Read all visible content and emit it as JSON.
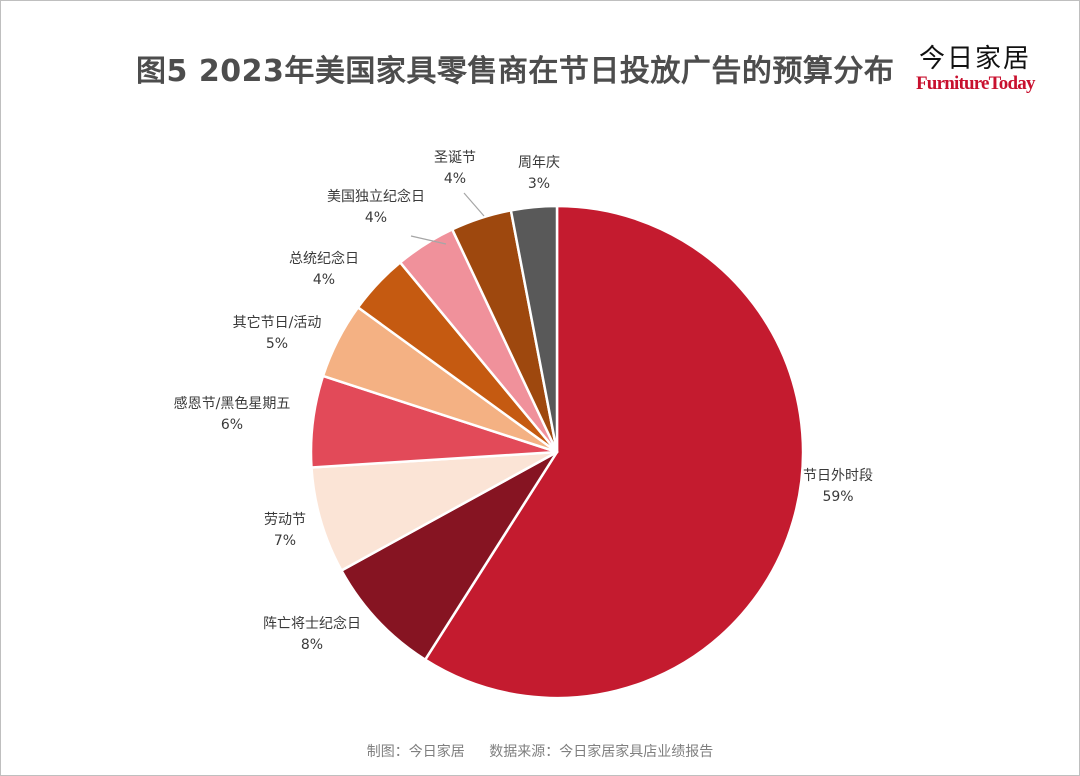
{
  "header": {
    "title": "图5  2023年美国家具零售商在节日投放广告的预算分布",
    "brand_cn": "今日家居",
    "brand_en": "FurnitureToday"
  },
  "footer": {
    "chart_credit": "制图：今日家居",
    "data_source": "数据来源：今日家居家具店业绩报告"
  },
  "chart_data": {
    "type": "pie",
    "title": "图5  2023年美国家具零售商在节日投放广告的预算分布",
    "start_angle": "12 o'clock, clockwise",
    "legend": "none (direct labels)",
    "slices": [
      {
        "label": "节日外时段",
        "value": 59,
        "display": "59%",
        "color": "#c41b2f"
      },
      {
        "label": "阵亡将士纪念日",
        "value": 8,
        "display": "8%",
        "color": "#861422"
      },
      {
        "label": "劳动节",
        "value": 7,
        "display": "7%",
        "color": "#fbe4d6"
      },
      {
        "label": "感恩节/黑色星期五",
        "value": 6,
        "display": "6%",
        "color": "#e24a59"
      },
      {
        "label": "其它节日/活动",
        "value": 5,
        "display": "5%",
        "color": "#f4b183"
      },
      {
        "label": "总统纪念日",
        "value": 4,
        "display": "4%",
        "color": "#c55a11"
      },
      {
        "label": "美国独立纪念日",
        "value": 4,
        "display": "4%",
        "color": "#f0919b"
      },
      {
        "label": "圣诞节",
        "value": 4,
        "display": "4%",
        "color": "#9e480e"
      },
      {
        "label": "周年庆",
        "value": 3,
        "display": "3%",
        "color": "#595959"
      }
    ]
  }
}
